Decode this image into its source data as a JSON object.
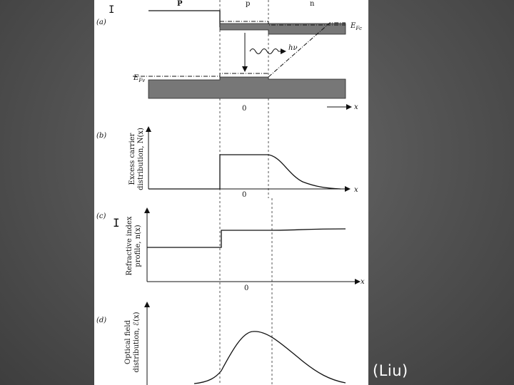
{
  "caption": "(Liu)",
  "regions": {
    "left": "P",
    "middle": "p",
    "right": "n"
  },
  "panel_a": {
    "tag": "(a)",
    "conduction_label": "E",
    "conduction_sub": "Fc",
    "valence_label": "E",
    "valence_sub": "Fv",
    "photon_label": "hν",
    "origin": "0",
    "axis": "x"
  },
  "panel_b": {
    "tag": "(b)",
    "ylabel_line1": "Excess carrier",
    "ylabel_line2": "distribution, N(x)",
    "origin": "0",
    "axis": "x"
  },
  "panel_c": {
    "tag": "(c)",
    "ylabel_line1": "Refractive index",
    "ylabel_line2": "profile, n(x)",
    "origin": "0",
    "axis": "x"
  },
  "panel_d": {
    "tag": "(d)",
    "ylabel_line1": "Optical field",
    "ylabel_line2": "distribution, ℰ(x)"
  }
}
